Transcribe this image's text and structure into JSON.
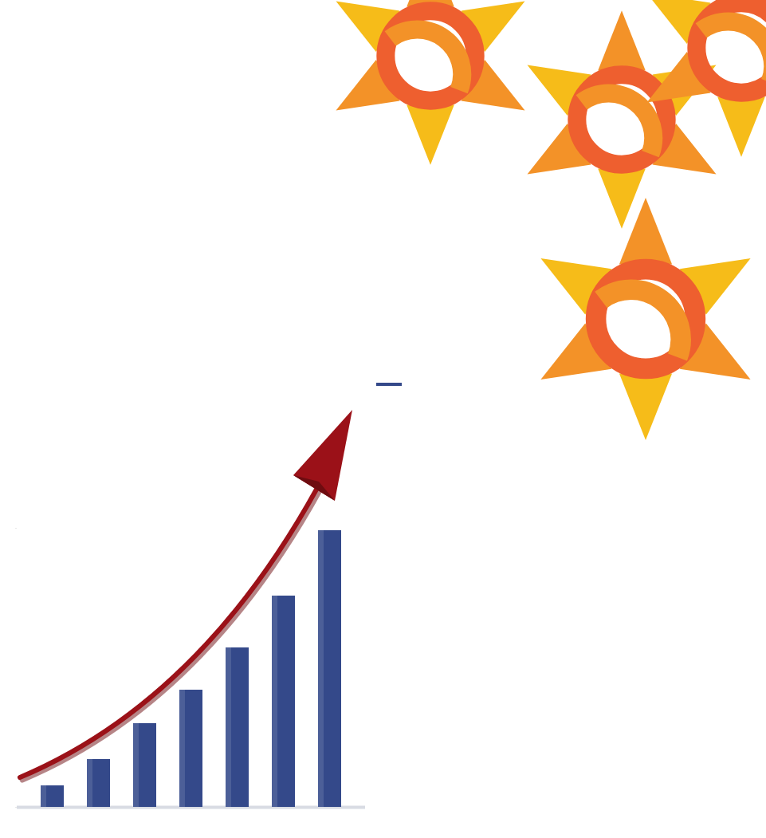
{
  "chart_data": {
    "type": "bar",
    "categories": [
      null,
      null,
      null,
      null,
      null,
      null,
      null
    ],
    "values": [
      27,
      60,
      105,
      147,
      200,
      265,
      347
    ],
    "color": "#34498a",
    "ylim": [
      0,
      350
    ],
    "yticks": [
      0,
      350
    ],
    "grid": false,
    "tick_labels": false
  }
}
